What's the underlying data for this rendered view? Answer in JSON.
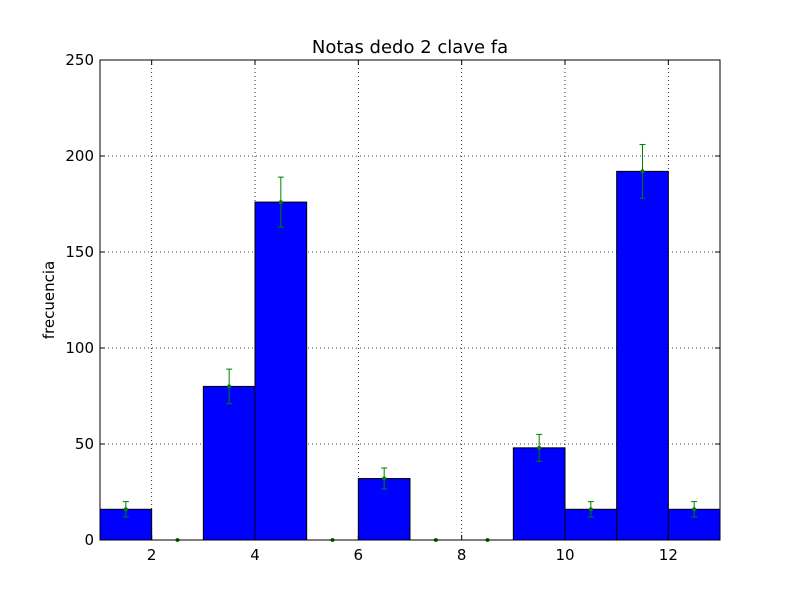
{
  "chart_data": {
    "type": "bar",
    "title": "Notas dedo 2 clave fa",
    "xlabel": "",
    "ylabel": "frecuencia",
    "xlim": [
      1,
      13
    ],
    "ylim": [
      0,
      250
    ],
    "xticks": [
      2,
      4,
      6,
      8,
      10,
      12
    ],
    "yticks": [
      0,
      50,
      100,
      150,
      200,
      250
    ],
    "grid": true,
    "bar_color": "#0000ff",
    "errorbar_color": "#008000",
    "bars": [
      {
        "x0": 1,
        "x1": 2,
        "value": 16,
        "error": 4
      },
      {
        "x0": 2,
        "x1": 3,
        "value": 0,
        "error": 0
      },
      {
        "x0": 3,
        "x1": 4,
        "value": 80,
        "error": 9
      },
      {
        "x0": 4,
        "x1": 5,
        "value": 176,
        "error": 13
      },
      {
        "x0": 5,
        "x1": 6,
        "value": 0,
        "error": 0
      },
      {
        "x0": 6,
        "x1": 7,
        "value": 32,
        "error": 5.5
      },
      {
        "x0": 7,
        "x1": 8,
        "value": 0,
        "error": 0
      },
      {
        "x0": 8,
        "x1": 9,
        "value": 0,
        "error": 0
      },
      {
        "x0": 9,
        "x1": 10,
        "value": 48,
        "error": 7
      },
      {
        "x0": 10,
        "x1": 11,
        "value": 16,
        "error": 4
      },
      {
        "x0": 11,
        "x1": 12,
        "value": 192,
        "error": 14
      },
      {
        "x0": 12,
        "x1": 13,
        "value": 16,
        "error": 4
      }
    ]
  }
}
